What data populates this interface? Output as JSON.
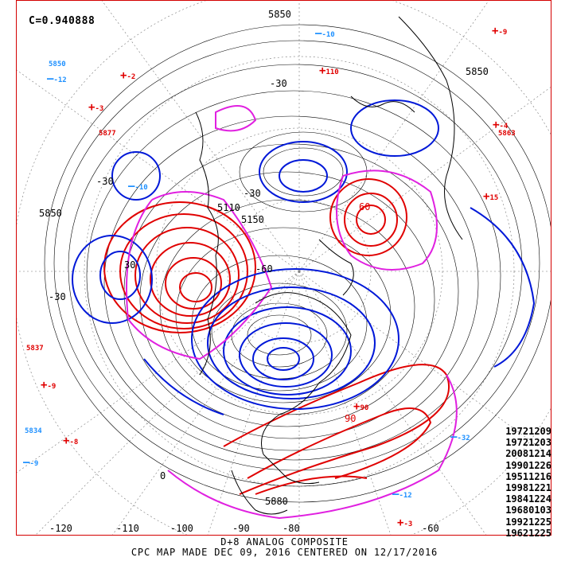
{
  "header": {
    "correlation": "C=0.940888"
  },
  "colors": {
    "positive": "#e00000",
    "negative": "#0018d8",
    "zero": "#e020e0",
    "height": "#000000",
    "marker_pos": "#e00000",
    "marker_neg": "#1e90ff",
    "frame": "#d40000"
  },
  "contour_labels": {
    "h5850a": "5850",
    "h5850b": "5850",
    "h5850c": "5850",
    "h5880": "5880",
    "h5110": "5110",
    "h5150": "5150",
    "neg30a": "-30",
    "neg30b": "-30",
    "neg30c": "-30",
    "neg30d": "-30",
    "neg60": "-60",
    "pos30": "30",
    "pos60": "60",
    "pos90": "90",
    "zero": "0"
  },
  "anomaly_markers": {
    "positive": [
      "-9",
      "-2",
      "-3",
      "110",
      "-4",
      "15",
      "-9",
      "-8",
      "90",
      "-3"
    ],
    "negative": [
      "-10",
      "-12",
      "-10",
      "-32",
      "-12",
      "-9"
    ],
    "heights": [
      "5850",
      "5877",
      "5863",
      "5837",
      "5834"
    ]
  },
  "longitude_labels": [
    "-120",
    "-110",
    "-100",
    "-90",
    "-80",
    "-60"
  ],
  "analog_years": [
    "19721209",
    "19721203",
    "20081214",
    "19901226",
    "19511216",
    "19981221",
    "19841224",
    "19680103",
    "19921225",
    "19621225"
  ],
  "caption": {
    "line1": "D+8 ANALOG COMPOSITE",
    "line2": "CPC MAP MADE DEC 09, 2016 CENTERED ON 12/17/2016"
  }
}
